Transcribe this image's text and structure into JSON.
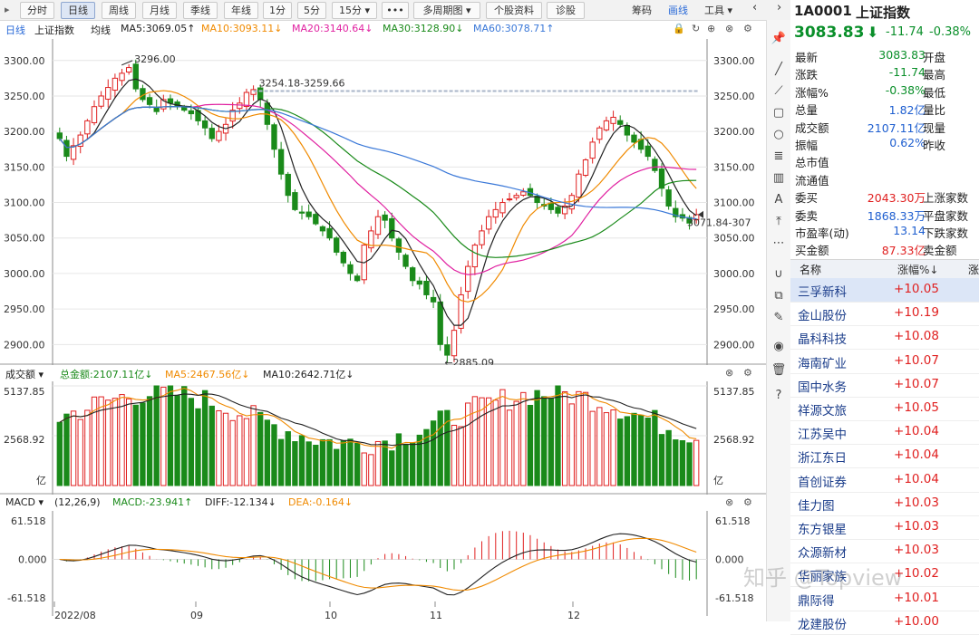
{
  "toolbar": {
    "periods": [
      "分时",
      "日线",
      "周线",
      "月线",
      "季线",
      "年线",
      "1分",
      "5分",
      "15分 ▾",
      "•••",
      "多周期图 ▾",
      "个股资料",
      "诊股"
    ],
    "right_items": [
      "筹码",
      "画线",
      "工具 ▾"
    ],
    "nav": [
      "‹",
      "›"
    ],
    "active": "日线"
  },
  "main_header": {
    "period": "日线",
    "name": "上证指数",
    "avg": "均线",
    "ma5": "MA5:3069.05↑",
    "ma10": "MA10:3093.11↓",
    "ma20": "MA20:3140.64↓",
    "ma30": "MA30:3128.90↓",
    "ma60": "MA60:3078.71↑"
  },
  "price_axis": {
    "ticks": [
      "3300.00",
      "3250.00",
      "3200.00",
      "3150.00",
      "3100.00",
      "3050.00",
      "3000.00",
      "2950.00",
      "2900.00"
    ]
  },
  "annotations": {
    "high": "3296.00",
    "range": "3254.18-3259.66",
    "low": "←2885.09",
    "last": "3071.84-307"
  },
  "volume_header": {
    "label": "成交额 ▾",
    "total": "总金额:2107.11亿↓",
    "ma5": "MA5:2467.56亿↓",
    "ma10": "MA10:2642.71亿↓"
  },
  "volume_axis": {
    "top": "5137.85",
    "mid": "2568.92",
    "unit": "亿"
  },
  "macd_header": {
    "label": "MACD ▾",
    "params": "(12,26,9)",
    "macd": "MACD:-23.941↑",
    "diff": "DIFF:-12.134↓",
    "dea": "DEA:-0.164↓"
  },
  "macd_axis": {
    "top": "61.518",
    "mid": "0.000",
    "bottom": "-61.518"
  },
  "x_labels": [
    "2022/08",
    "09",
    "10",
    "11",
    "12"
  ],
  "quote": {
    "code": "1A0001",
    "name": "上证指数",
    "price": "3083.83",
    "arrow": "⬇",
    "change": "-11.74",
    "change_pct": "-0.38%",
    "rows": [
      {
        "label": "最新",
        "value": "3083.83",
        "label2": "开盘",
        "color": "green"
      },
      {
        "label": "涨跌",
        "value": "-11.74",
        "label2": "最高",
        "color": "green"
      },
      {
        "label": "涨幅%",
        "value": "-0.38%",
        "label2": "最低",
        "color": "green"
      },
      {
        "label": "总量",
        "value": "1.82亿",
        "label2": "量比",
        "color": "blue"
      },
      {
        "label": "成交额",
        "value": "2107.11亿",
        "label2": "现量",
        "color": "blue"
      },
      {
        "label": "振幅",
        "value": "0.62%",
        "label2": "昨收",
        "color": "blue"
      },
      {
        "label": "总市值",
        "value": "",
        "label2": "",
        "color": "blue"
      },
      {
        "label": "流通值",
        "value": "",
        "label2": "",
        "color": "blue"
      },
      {
        "label": "委买",
        "value": "2043.30万",
        "label2": "上涨家数",
        "color": "red"
      },
      {
        "label": "委卖",
        "value": "1868.33万",
        "label2": "平盘家数",
        "color": "blue"
      },
      {
        "label": "市盈率(动)",
        "value": "13.14",
        "label2": "下跌家数",
        "color": "blue"
      },
      {
        "label": "买金额",
        "value": "87.33亿",
        "label2": "卖金额",
        "color": "red"
      }
    ]
  },
  "table": {
    "headers": [
      "名称",
      "涨幅%↓",
      "涨"
    ],
    "rows": [
      {
        "name": "三孚新科",
        "pct": "+10.05"
      },
      {
        "name": "金山股份",
        "pct": "+10.19"
      },
      {
        "name": "晶科科技",
        "pct": "+10.08"
      },
      {
        "name": "海南矿业",
        "pct": "+10.07"
      },
      {
        "name": "国中水务",
        "pct": "+10.07"
      },
      {
        "name": "祥源文旅",
        "pct": "+10.05"
      },
      {
        "name": "江苏吴中",
        "pct": "+10.04"
      },
      {
        "name": "浙江东日",
        "pct": "+10.04"
      },
      {
        "name": "首创证券",
        "pct": "+10.04"
      },
      {
        "name": "佳力图",
        "pct": "+10.03"
      },
      {
        "name": "东方银星",
        "pct": "+10.03"
      },
      {
        "name": "众源新材",
        "pct": "+10.03"
      },
      {
        "name": "华丽家族",
        "pct": "+10.02"
      },
      {
        "name": "鼎际得",
        "pct": "+10.01"
      },
      {
        "name": "龙建股份",
        "pct": "+10.00"
      }
    ]
  },
  "watermark": "知乎 @Topview",
  "colors": {
    "up": "#e02020",
    "down": "#1a8a1a",
    "ma5": "#222222",
    "ma10": "#f08a00",
    "ma20": "#e020a0",
    "ma30": "#1a8a1a",
    "ma60": "#3a78d8"
  },
  "chart_data": {
    "type": "candlestick",
    "x_axis_labels": [
      "2022/08",
      "09",
      "10",
      "11",
      "12"
    ],
    "price_range": [
      2880,
      3315
    ],
    "price_anchors": [
      {
        "value": 3296.0,
        "label": "high"
      },
      {
        "value": 2885.09,
        "label": "low"
      },
      {
        "value": 3259.66,
        "label": "range-high"
      },
      {
        "value": 3071.84,
        "label": "last"
      }
    ],
    "close_series": [
      3190,
      3165,
      3180,
      3195,
      3215,
      3235,
      3250,
      3262,
      3275,
      3282,
      3290,
      3260,
      3245,
      3238,
      3228,
      3245,
      3240,
      3235,
      3230,
      3225,
      3215,
      3205,
      3190,
      3200,
      3210,
      3230,
      3240,
      3255,
      3259,
      3245,
      3210,
      3175,
      3140,
      3110,
      3090,
      3085,
      3080,
      3070,
      3060,
      3050,
      3030,
      3015,
      3000,
      2990,
      3040,
      3060,
      3080,
      3075,
      3050,
      3030,
      3010,
      2990,
      2985,
      2970,
      2960,
      2900,
      2885,
      2920,
      2970,
      3010,
      3040,
      3060,
      3080,
      3090,
      3100,
      3105,
      3110,
      3115,
      3110,
      3100,
      3095,
      3090,
      3085,
      3095,
      3110,
      3140,
      3160,
      3185,
      3205,
      3215,
      3220,
      3210,
      3195,
      3185,
      3175,
      3165,
      3145,
      3120,
      3095,
      3080,
      3078,
      3071,
      3083
    ],
    "ma_last": {
      "MA5": 3069.05,
      "MA10": 3093.11,
      "MA20": 3140.64,
      "MA30": 3128.9,
      "MA60": 3078.71
    },
    "volume_axis_max": 5137.85,
    "volume_last": 2107.11,
    "macd_axis": [
      -61.518,
      61.518
    ],
    "macd_last": {
      "MACD": -23.941,
      "DIFF": -12.134,
      "DEA": -0.164
    }
  }
}
